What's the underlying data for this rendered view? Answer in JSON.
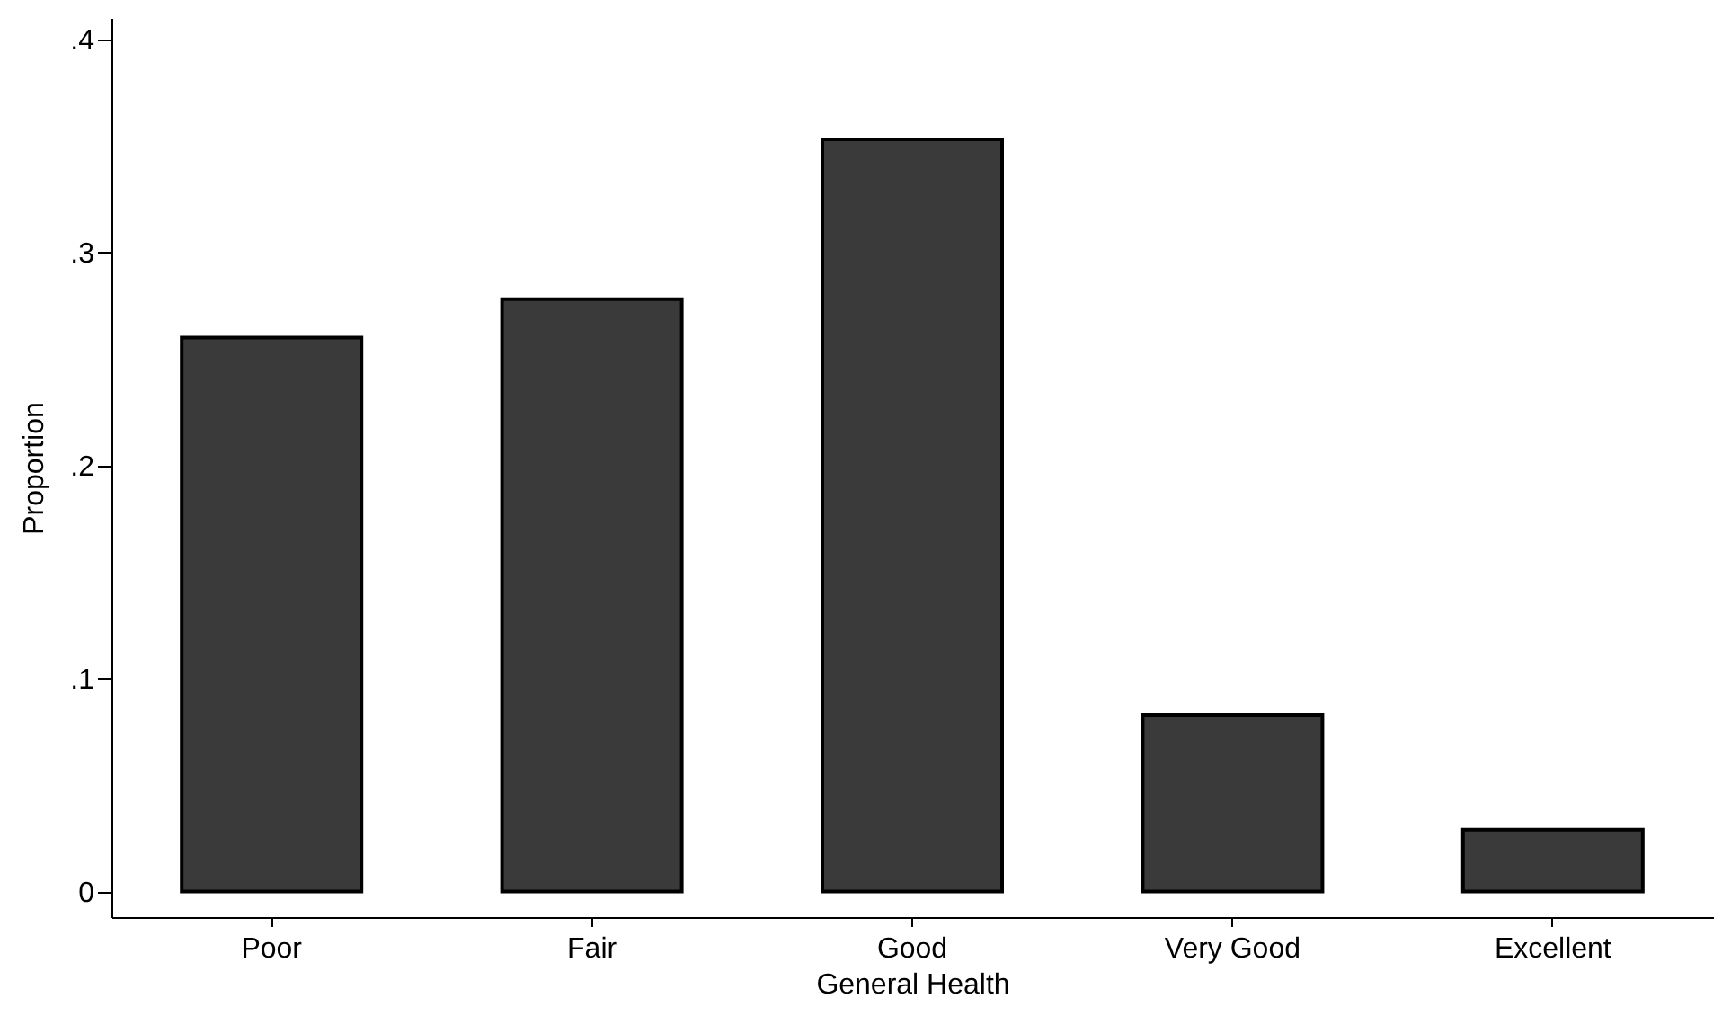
{
  "chart_data": {
    "type": "bar",
    "xlabel": "General Health",
    "ylabel": "Proportion",
    "categories": [
      "Poor",
      "Fair",
      "Good",
      "Very Good",
      "Excellent"
    ],
    "values": [
      0.26,
      0.278,
      0.353,
      0.083,
      0.029
    ],
    "color": "#3a3a3a",
    "ylim": [
      -0.012,
      0.41
    ],
    "yticks": [
      {
        "value": 0,
        "label": "0"
      },
      {
        "value": 0.1,
        "label": ".1"
      },
      {
        "value": 0.2,
        "label": ".2"
      },
      {
        "value": 0.3,
        "label": ".3"
      },
      {
        "value": 0.4,
        "label": ".4"
      }
    ],
    "grid": false
  }
}
